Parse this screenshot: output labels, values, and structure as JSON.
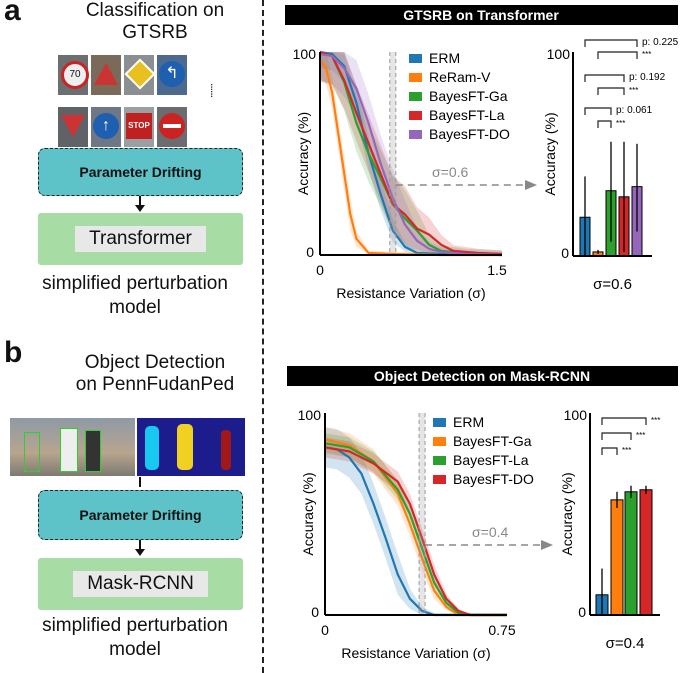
{
  "panel_a": {
    "label": "a",
    "title_line1": "Classification on",
    "title_line2": "GTSRB",
    "drift_label": "Parameter Drifting",
    "model_label": "Transformer",
    "caption_line1": "simplified perturbation",
    "caption_line2": "model",
    "sign_text": "STOP",
    "ellipsis": "......"
  },
  "panel_b": {
    "label": "b",
    "title_line1": "Object Detection",
    "title_line2": "on PennFudanPed",
    "drift_label": "Parameter Drifting",
    "model_label": "Mask-RCNN",
    "caption_line1": "simplified perturbation",
    "caption_line2": "model"
  },
  "colors": {
    "ERM": "#1f77b4",
    "ReRam-V": "#ff7f0e",
    "BayesFT-Ga": "#2ca02c",
    "BayesFT-La": "#d62728",
    "BayesFT-DO": "#9467bd",
    "BayesFT-Ga-b": "#ff7f0e",
    "BayesFT-La-b": "#2ca02c",
    "BayesFT-DO-b": "#d62728",
    "highlight": "#999999",
    "drift_box": "#5ec3c9",
    "model_box": "#a8dca5"
  },
  "chart_data": [
    {
      "type": "line",
      "title": "GTSRB on Transformer",
      "xlabel": "Resistance Variation (σ)",
      "ylabel": "Accuracy (%)",
      "xlim": [
        0,
        1.5
      ],
      "ylim": [
        0,
        100
      ],
      "xticks": [
        "0",
        "1.5"
      ],
      "yticks": [
        "0",
        "100"
      ],
      "legend": "top-right",
      "highlight_x": 0.6,
      "highlight_label": "σ=0.6",
      "series": [
        {
          "name": "ERM",
          "color": "#1f77b4",
          "band": 8,
          "x": [
            0,
            0.1,
            0.2,
            0.3,
            0.4,
            0.5,
            0.6,
            0.7,
            0.8,
            1.0,
            1.5
          ],
          "y": [
            100,
            99,
            93,
            75,
            50,
            30,
            12,
            4,
            1,
            0.5,
            0
          ]
        },
        {
          "name": "ReRam-V",
          "color": "#ff7f0e",
          "band": 8,
          "x": [
            0,
            0.05,
            0.1,
            0.15,
            0.2,
            0.25,
            0.3,
            0.4,
            0.6,
            1.0,
            1.5
          ],
          "y": [
            96,
            92,
            80,
            60,
            40,
            20,
            8,
            1,
            0.5,
            0,
            0
          ]
        },
        {
          "name": "BayesFT-Ga",
          "color": "#2ca02c",
          "band": 14,
          "x": [
            0,
            0.1,
            0.2,
            0.3,
            0.4,
            0.5,
            0.6,
            0.7,
            0.8,
            0.9,
            1.0,
            1.2,
            1.5
          ],
          "y": [
            100,
            98,
            85,
            65,
            50,
            38,
            25,
            18,
            12,
            5,
            2,
            1,
            0.5
          ]
        },
        {
          "name": "BayesFT-La",
          "color": "#d62728",
          "band": 14,
          "x": [
            0,
            0.1,
            0.2,
            0.3,
            0.4,
            0.5,
            0.6,
            0.7,
            0.8,
            0.9,
            1.0,
            1.1,
            1.3,
            1.5
          ],
          "y": [
            100,
            98,
            86,
            70,
            55,
            40,
            25,
            20,
            13,
            10,
            5,
            2,
            1,
            0.5
          ]
        },
        {
          "name": "BayesFT-DO",
          "color": "#9467bd",
          "band": 14,
          "x": [
            0,
            0.1,
            0.2,
            0.3,
            0.4,
            0.5,
            0.6,
            0.7,
            0.8,
            0.9,
            1.0,
            1.2,
            1.5
          ],
          "y": [
            99,
            98,
            92,
            82,
            65,
            45,
            28,
            15,
            7,
            3,
            1.5,
            0.5,
            0
          ]
        }
      ]
    },
    {
      "type": "bar",
      "xlabel": "σ=0.6",
      "ylabel": "Accuracy (%)",
      "ylim": [
        0,
        100
      ],
      "yticks": [
        "0",
        "100"
      ],
      "categories": [
        "ERM",
        "ReRam-V",
        "BayesFT-Ga",
        "BayesFT-La",
        "BayesFT-DO"
      ],
      "values": [
        19,
        2,
        32,
        29,
        34
      ],
      "error_low": [
        0,
        1,
        7,
        2,
        12
      ],
      "error_high": [
        39,
        3,
        56,
        56,
        55
      ],
      "colors": [
        "#1f77b4",
        "#ff7f0e",
        "#2ca02c",
        "#d62728",
        "#9467bd"
      ],
      "comparisons": [
        {
          "from": 0,
          "to": 4,
          "label": "p: 0.225"
        },
        {
          "from": 1,
          "to": 4,
          "label": "***"
        },
        {
          "from": 0,
          "to": 3,
          "label": "p: 0.192"
        },
        {
          "from": 1,
          "to": 3,
          "label": "***"
        },
        {
          "from": 0,
          "to": 2,
          "label": "p: 0.061"
        },
        {
          "from": 1,
          "to": 2,
          "label": "***"
        }
      ]
    },
    {
      "type": "line",
      "title": "Object Detection on Mask-RCNN",
      "xlabel": "Resistance Variation (σ)",
      "ylabel": "Accuracy (%)",
      "xlim": [
        0,
        0.75
      ],
      "ylim": [
        0,
        100
      ],
      "xticks": [
        "0",
        "0.75"
      ],
      "yticks": [
        "0",
        "100"
      ],
      "legend": "top-right",
      "highlight_x": 0.4,
      "highlight_label": "σ=0.4",
      "series": [
        {
          "name": "ERM",
          "color": "#1f77b4",
          "band": 10,
          "x": [
            0,
            0.05,
            0.1,
            0.15,
            0.2,
            0.25,
            0.3,
            0.35,
            0.4,
            0.45,
            0.75
          ],
          "y": [
            83,
            82,
            78,
            70,
            55,
            38,
            20,
            8,
            2,
            0,
            0
          ]
        },
        {
          "name": "BayesFT-Ga",
          "color": "#ff7f0e",
          "band": 6,
          "x": [
            0,
            0.1,
            0.2,
            0.3,
            0.35,
            0.4,
            0.45,
            0.5,
            0.55,
            0.75
          ],
          "y": [
            87,
            84,
            76,
            60,
            45,
            28,
            12,
            4,
            0,
            0
          ]
        },
        {
          "name": "BayesFT-La",
          "color": "#2ca02c",
          "band": 5,
          "x": [
            0,
            0.1,
            0.2,
            0.3,
            0.35,
            0.4,
            0.45,
            0.5,
            0.55,
            0.6,
            0.75
          ],
          "y": [
            85,
            83,
            76,
            62,
            50,
            33,
            16,
            6,
            1,
            0,
            0
          ]
        },
        {
          "name": "BayesFT-DO",
          "color": "#d62728",
          "band": 5,
          "x": [
            0,
            0.1,
            0.2,
            0.3,
            0.35,
            0.4,
            0.45,
            0.5,
            0.55,
            0.6,
            0.75
          ],
          "y": [
            83,
            81,
            75,
            66,
            55,
            38,
            20,
            8,
            2,
            0,
            0
          ]
        }
      ]
    },
    {
      "type": "bar",
      "xlabel": "σ=0.4",
      "ylabel": "Accuracy (%)",
      "ylim": [
        0,
        100
      ],
      "yticks": [
        "0",
        "100"
      ],
      "categories": [
        "ERM",
        "BayesFT-Ga",
        "BayesFT-La",
        "BayesFT-DO"
      ],
      "values": [
        10,
        57,
        61,
        62
      ],
      "error_low": [
        0,
        53,
        58,
        60
      ],
      "error_high": [
        23,
        61,
        64,
        64
      ],
      "colors": [
        "#1f77b4",
        "#ff7f0e",
        "#2ca02c",
        "#d62728"
      ],
      "comparisons": [
        {
          "from": 0,
          "to": 3,
          "label": "***"
        },
        {
          "from": 0,
          "to": 2,
          "label": "***"
        },
        {
          "from": 0,
          "to": 1,
          "label": "***"
        }
      ]
    }
  ]
}
